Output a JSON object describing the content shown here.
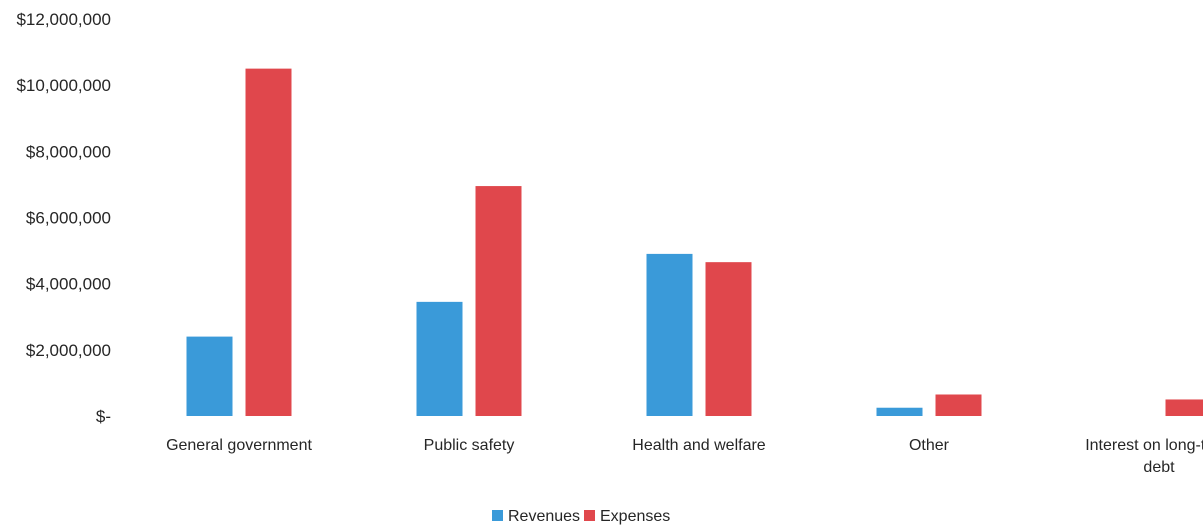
{
  "chart_data": {
    "type": "bar",
    "title": "",
    "xlabel": "",
    "ylabel": "",
    "ylim": [
      0,
      12000000
    ],
    "y_ticks": [
      0,
      2000000,
      4000000,
      6000000,
      8000000,
      10000000,
      12000000
    ],
    "y_tick_labels": [
      "$-",
      "$2,000,000",
      "$4,000,000",
      "$6,000,000",
      "$8,000,000",
      "$10,000,000",
      "$12,000,000"
    ],
    "categories": [
      [
        "General government"
      ],
      [
        "Public safety"
      ],
      [
        "Health and welfare"
      ],
      [
        "Other"
      ],
      [
        "Interest on long-term",
        "debt"
      ]
    ],
    "series": [
      {
        "name": "Revenues",
        "color": "#3a9ad9",
        "values": [
          2400000,
          3450000,
          4900000,
          250000,
          0
        ]
      },
      {
        "name": "Expenses",
        "color": "#e0474c",
        "values": [
          10500000,
          6950000,
          4650000,
          650000,
          500000
        ]
      }
    ],
    "grid": false,
    "legend_position": "bottom"
  }
}
